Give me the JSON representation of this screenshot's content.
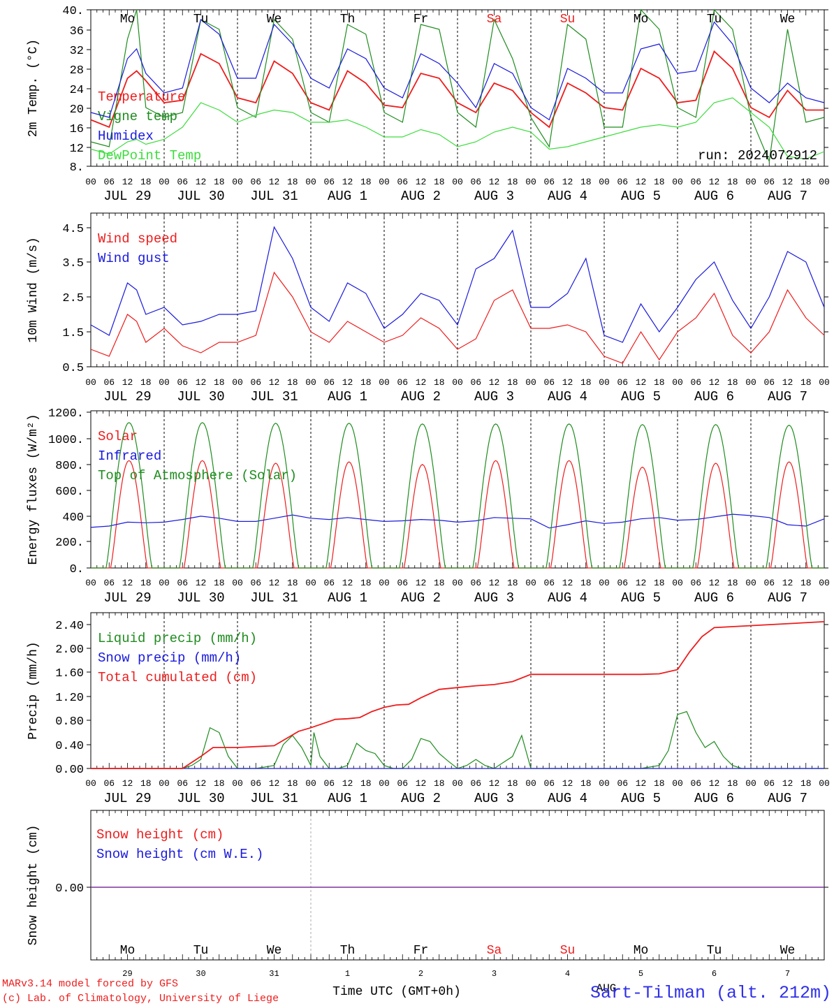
{
  "run_label": "run: 2024072912",
  "footer": {
    "line1": "MARv3.14 model forced by GFS",
    "line2": "(c) Lab. of Climatology, University of Liege",
    "axis_title": "Time UTC (GMT+0h)",
    "station": "Sart-Tilman (alt. 212m)",
    "overlay": "AUG"
  },
  "days": [
    {
      "weekday": "Mo",
      "date": "JUL 29",
      "daynum": "29",
      "weekend": false
    },
    {
      "weekday": "Tu",
      "date": "JUL 30",
      "daynum": "30",
      "weekend": false
    },
    {
      "weekday": "We",
      "date": "JUL 31",
      "daynum": "31",
      "weekend": false
    },
    {
      "weekday": "Th",
      "date": "AUG  1",
      "daynum": "1",
      "weekend": false
    },
    {
      "weekday": "Fr",
      "date": "AUG  2",
      "daynum": "2",
      "weekend": false
    },
    {
      "weekday": "Sa",
      "date": "AUG  3",
      "daynum": "3",
      "weekend": true
    },
    {
      "weekday": "Su",
      "date": "AUG  4",
      "daynum": "4",
      "weekend": true
    },
    {
      "weekday": "Mo",
      "date": "AUG  5",
      "daynum": "5",
      "weekend": false
    },
    {
      "weekday": "Tu",
      "date": "AUG  6",
      "daynum": "6",
      "weekend": false
    },
    {
      "weekday": "We",
      "date": "AUG  7",
      "daynum": "7",
      "weekend": false
    }
  ],
  "hour_ticks": [
    "00",
    "06",
    "12",
    "18"
  ],
  "end_tick": "00",
  "colors": {
    "red": "#ee1c1c",
    "green": "#1e8c1e",
    "blue": "#1a1adc",
    "lightgreen": "#3ddc3d",
    "purple": "#7a2a9a",
    "weekday": "#000000",
    "weekend": "#ee1c1c"
  },
  "chart_data": [
    {
      "type": "line",
      "ylabel": "2m Temp. (°C)",
      "yticks": [
        "8.",
        "12",
        "16",
        "20",
        "24",
        "28",
        "32",
        "36",
        "40."
      ],
      "ylim": [
        8,
        40
      ],
      "x_unit": "hours since JUL 29 00 UTC",
      "series": [
        {
          "name": "Temperature",
          "color": "red",
          "x": [
            0,
            6,
            12,
            15,
            18,
            24,
            30,
            36,
            42,
            48,
            54,
            60,
            66,
            72,
            78,
            84,
            90,
            96,
            102,
            108,
            114,
            120,
            126,
            132,
            138,
            144,
            150,
            156,
            162,
            168,
            174,
            180,
            186,
            192,
            198,
            204,
            210,
            216,
            222,
            228,
            234,
            240
          ],
          "y": [
            17.5,
            16,
            26,
            27.5,
            25.5,
            21,
            21.5,
            31,
            29,
            22,
            21,
            29.5,
            27,
            21,
            19.5,
            27.5,
            25,
            20.5,
            20,
            27,
            26,
            21,
            19,
            25,
            23.5,
            19,
            16,
            25,
            23,
            20,
            19.5,
            28,
            26,
            21,
            21.5,
            31.5,
            28,
            20,
            18,
            23.5,
            19.5,
            19.5
          ]
        },
        {
          "name": "Vigne temp",
          "color": "green",
          "x": [
            0,
            6,
            12,
            15,
            18,
            24,
            30,
            36,
            42,
            48,
            54,
            60,
            66,
            72,
            78,
            84,
            90,
            96,
            102,
            108,
            114,
            120,
            126,
            132,
            138,
            144,
            150,
            156,
            162,
            168,
            174,
            180,
            186,
            192,
            198,
            204,
            210,
            216,
            222,
            228,
            234,
            240
          ],
          "y": [
            13,
            12,
            34,
            40,
            20,
            18,
            19,
            38,
            36,
            20,
            18,
            38,
            34,
            19,
            17,
            37,
            35,
            19,
            17,
            37,
            36,
            19,
            16,
            38,
            30,
            18,
            12,
            37,
            34,
            16,
            16,
            40,
            36,
            20,
            18,
            40,
            36,
            18,
            9,
            36,
            17,
            18
          ]
        },
        {
          "name": "Humidex",
          "color": "blue",
          "x": [
            0,
            6,
            12,
            15,
            18,
            24,
            30,
            36,
            42,
            48,
            54,
            60,
            66,
            72,
            78,
            84,
            90,
            96,
            102,
            108,
            114,
            120,
            126,
            132,
            138,
            144,
            150,
            156,
            162,
            168,
            174,
            180,
            186,
            192,
            198,
            204,
            210,
            216,
            222,
            228,
            234,
            240
          ],
          "y": [
            19,
            18,
            30,
            32,
            27,
            23,
            24,
            38,
            35,
            26,
            26,
            37,
            33,
            26,
            24,
            32,
            30,
            24,
            22,
            31,
            29,
            25,
            20,
            29,
            27,
            20,
            17.5,
            28,
            26,
            23,
            23,
            32,
            33,
            27,
            27.5,
            37.5,
            33,
            24,
            21,
            25,
            22,
            21
          ]
        },
        {
          "name": "DewPoint Temp",
          "color": "lightgreen",
          "x": [
            0,
            6,
            12,
            15,
            18,
            24,
            30,
            36,
            42,
            48,
            54,
            60,
            66,
            72,
            78,
            84,
            90,
            96,
            102,
            108,
            114,
            120,
            126,
            132,
            138,
            144,
            150,
            156,
            162,
            168,
            174,
            180,
            186,
            192,
            198,
            204,
            210,
            216,
            222,
            228,
            234,
            240
          ],
          "y": [
            11.5,
            10.5,
            13,
            13.5,
            12.5,
            13.5,
            16,
            21,
            19.5,
            17,
            18.5,
            19.5,
            19,
            17,
            17,
            17.5,
            16,
            14,
            14,
            15.5,
            14.5,
            12,
            13,
            15,
            16,
            15,
            11.5,
            12,
            13,
            14,
            15,
            16,
            16.5,
            16,
            17,
            21,
            22,
            19,
            16,
            10,
            9.5,
            11
          ]
        }
      ]
    },
    {
      "type": "line",
      "ylabel": "10m Wind (m/s)",
      "yticks": [
        "0.5",
        "1.5",
        "2.5",
        "3.5",
        "4.5"
      ],
      "ylim": [
        0.5,
        4.9
      ],
      "x_unit": "hours since JUL 29 00 UTC",
      "series": [
        {
          "name": "Wind speed",
          "color": "red",
          "x": [
            0,
            6,
            12,
            15,
            18,
            24,
            30,
            36,
            42,
            48,
            54,
            60,
            66,
            72,
            78,
            84,
            90,
            96,
            102,
            108,
            114,
            120,
            126,
            132,
            138,
            144,
            150,
            156,
            162,
            168,
            174,
            180,
            186,
            192,
            198,
            204,
            210,
            216,
            222,
            228,
            234,
            240
          ],
          "y": [
            1.0,
            0.8,
            2.0,
            1.8,
            1.2,
            1.6,
            1.1,
            0.9,
            1.2,
            1.2,
            1.4,
            3.2,
            2.5,
            1.5,
            1.2,
            1.8,
            1.5,
            1.2,
            1.4,
            1.9,
            1.6,
            1.0,
            1.3,
            2.4,
            2.7,
            1.6,
            1.6,
            1.7,
            1.5,
            0.8,
            0.6,
            1.5,
            0.7,
            1.5,
            1.9,
            2.6,
            1.4,
            0.9,
            1.5,
            2.7,
            1.9,
            1.4
          ]
        },
        {
          "name": "Wind gust",
          "color": "blue",
          "x": [
            0,
            6,
            12,
            15,
            18,
            24,
            30,
            36,
            42,
            48,
            54,
            60,
            66,
            72,
            78,
            84,
            90,
            96,
            102,
            108,
            114,
            120,
            126,
            132,
            138,
            144,
            150,
            156,
            162,
            168,
            174,
            180,
            186,
            192,
            198,
            204,
            210,
            216,
            222,
            228,
            234,
            240
          ],
          "y": [
            1.7,
            1.4,
            2.9,
            2.7,
            2.0,
            2.2,
            1.7,
            1.8,
            2.0,
            2.0,
            2.1,
            4.5,
            3.6,
            2.2,
            1.8,
            2.9,
            2.6,
            1.6,
            2.0,
            2.6,
            2.4,
            1.7,
            3.3,
            3.6,
            4.4,
            2.2,
            2.2,
            2.6,
            3.6,
            1.4,
            1.2,
            2.3,
            1.5,
            2.2,
            3.0,
            3.5,
            2.4,
            1.6,
            2.5,
            3.8,
            3.5,
            2.2
          ]
        }
      ]
    },
    {
      "type": "line",
      "ylabel": "Energy fluxes (W/m²)",
      "yticks": [
        "0.",
        "200.",
        "400",
        "600.",
        "800.",
        "1000.",
        "1200."
      ],
      "ylim": [
        0,
        1200
      ],
      "x_unit": "hours since JUL 29 00 UTC",
      "series": [
        {
          "name": "Solar",
          "color": "red",
          "daily_max": [
            820,
            820,
            800,
            810,
            790,
            820,
            820,
            770,
            800,
            810
          ]
        },
        {
          "name": "Infrared",
          "color": "blue",
          "x": [
            0,
            6,
            12,
            18,
            24,
            30,
            36,
            42,
            48,
            54,
            60,
            66,
            72,
            78,
            84,
            90,
            96,
            102,
            108,
            114,
            120,
            126,
            132,
            138,
            144,
            150,
            156,
            162,
            168,
            174,
            180,
            186,
            192,
            198,
            204,
            210,
            216,
            222,
            228,
            234,
            240
          ],
          "y": [
            310,
            320,
            350,
            345,
            350,
            370,
            395,
            380,
            355,
            355,
            380,
            405,
            380,
            370,
            385,
            370,
            355,
            360,
            370,
            365,
            350,
            360,
            385,
            380,
            375,
            305,
            330,
            360,
            340,
            350,
            375,
            385,
            365,
            370,
            390,
            410,
            400,
            385,
            330,
            320,
            375
          ]
        },
        {
          "name": "Top of Atmosphere (Solar)",
          "color": "green",
          "daily_max": [
            1110,
            1110,
            1105,
            1105,
            1100,
            1100,
            1100,
            1095,
            1095,
            1090
          ]
        }
      ]
    },
    {
      "type": "line",
      "ylabel": "Precip (mm/h)",
      "yticks": [
        "0.00",
        "0.40",
        "0.80",
        "1.20",
        "1.60",
        "2.00",
        "2.40"
      ],
      "ylim": [
        0,
        2.6
      ],
      "x_unit": "hours since JUL 29 00 UTC",
      "series": [
        {
          "name": "Liquid precip (mm/h)",
          "color": "green",
          "x": [
            0,
            30,
            33,
            36,
            39,
            42,
            45,
            48,
            54,
            60,
            63,
            66,
            69,
            72,
            73,
            75,
            78,
            81,
            84,
            87,
            90,
            93,
            96,
            99,
            102,
            105,
            108,
            111,
            114,
            117,
            120,
            123,
            126,
            129,
            132,
            135,
            138,
            141,
            144,
            150,
            174,
            180,
            186,
            189,
            192,
            195,
            198,
            201,
            204,
            207,
            210,
            213,
            216,
            240
          ],
          "y": [
            0,
            0,
            0.05,
            0.15,
            0.68,
            0.6,
            0.2,
            0,
            0,
            0.05,
            0.4,
            0.55,
            0.35,
            0.05,
            0.6,
            0.2,
            0,
            0,
            0.05,
            0.42,
            0.3,
            0.25,
            0.05,
            0,
            0,
            0.15,
            0.5,
            0.45,
            0.25,
            0.12,
            0,
            0.05,
            0.15,
            0.05,
            0,
            0.1,
            0.2,
            0.55,
            0,
            0,
            0,
            0,
            0.05,
            0.3,
            0.9,
            0.95,
            0.6,
            0.35,
            0.45,
            0.2,
            0.05,
            0,
            0,
            0
          ]
        },
        {
          "name": "Snow precip (mm/h)",
          "color": "blue",
          "x": [
            0,
            240
          ],
          "y": [
            0,
            0
          ]
        },
        {
          "name": "Total cumulated (cm)",
          "color": "red",
          "x": [
            0,
            30,
            36,
            40,
            48,
            60,
            64,
            68,
            72,
            76,
            80,
            84,
            88,
            92,
            96,
            100,
            104,
            108,
            114,
            120,
            126,
            132,
            138,
            144,
            168,
            180,
            186,
            192,
            196,
            200,
            204,
            240
          ],
          "y": [
            0,
            0,
            0.2,
            0.35,
            0.35,
            0.38,
            0.5,
            0.62,
            0.68,
            0.75,
            0.82,
            0.83,
            0.85,
            0.95,
            1.02,
            1.06,
            1.07,
            1.18,
            1.32,
            1.35,
            1.38,
            1.4,
            1.45,
            1.57,
            1.57,
            1.57,
            1.58,
            1.65,
            1.95,
            2.2,
            2.35,
            2.45
          ]
        }
      ]
    },
    {
      "type": "line",
      "ylabel": "Snow height (cm)",
      "yticks": [
        "0.00"
      ],
      "ylim": [
        -1,
        1
      ],
      "x_unit": "hours since JUL 29 00 UTC",
      "series": [
        {
          "name": "Snow height (cm)",
          "color": "red",
          "x": [
            0,
            240
          ],
          "y": [
            0,
            0
          ]
        },
        {
          "name": "Snow height (cm W.E.)",
          "color": "blue",
          "x": [
            0,
            240
          ],
          "y": [
            0,
            0
          ]
        }
      ]
    }
  ]
}
